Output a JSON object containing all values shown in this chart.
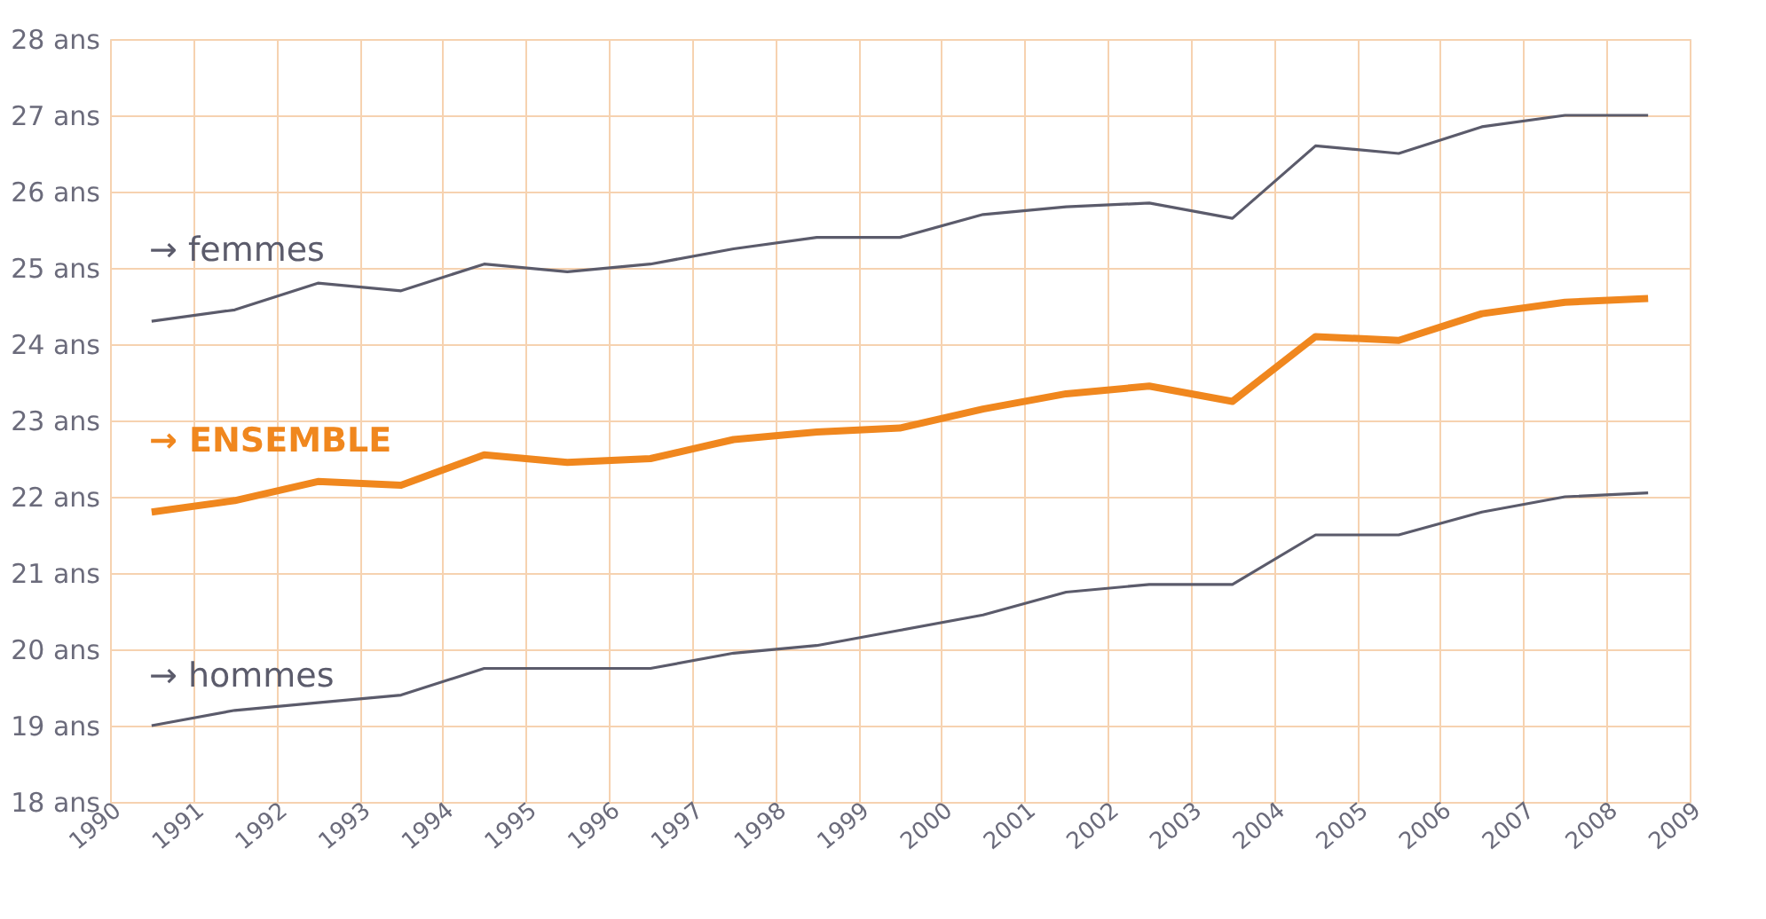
{
  "chart_data": {
    "type": "line",
    "x": [
      1990.5,
      1991.5,
      1992.5,
      1993.5,
      1994.5,
      1995.5,
      1996.5,
      1997.5,
      1998.5,
      1999.5,
      2000.5,
      2001.5,
      2002.5,
      2003.5,
      2004.5,
      2005.5,
      2006.5,
      2007.5,
      2008.5
    ],
    "series": [
      {
        "name": "→ femmes",
        "color": "#5b5b6b",
        "values": [
          24.3,
          24.45,
          24.8,
          24.7,
          25.05,
          24.95,
          25.05,
          25.25,
          25.4,
          25.4,
          25.7,
          25.8,
          25.85,
          25.65,
          26.6,
          26.5,
          26.85,
          27.0,
          27.0
        ]
      },
      {
        "name": "→ ENSEMBLE",
        "color": "#f0871e",
        "values": [
          21.8,
          21.95,
          22.2,
          22.15,
          22.55,
          22.45,
          22.5,
          22.75,
          22.85,
          22.9,
          23.15,
          23.35,
          23.45,
          23.25,
          24.1,
          24.05,
          24.4,
          24.55,
          24.6
        ]
      },
      {
        "name": "→ hommes",
        "color": "#5b5b6b",
        "values": [
          19.0,
          19.2,
          19.3,
          19.4,
          19.75,
          19.75,
          19.75,
          19.95,
          20.05,
          20.25,
          20.45,
          20.75,
          20.85,
          20.85,
          21.5,
          21.5,
          21.8,
          22.0,
          22.05
        ]
      }
    ],
    "xlim": [
      1990,
      2009
    ],
    "xticks": [
      1990,
      1991,
      1992,
      1993,
      1994,
      1995,
      1996,
      1997,
      1998,
      1999,
      2000,
      2001,
      2002,
      2003,
      2004,
      2005,
      2006,
      2007,
      2008,
      2009
    ],
    "ylim": [
      18,
      28
    ],
    "yticks": [
      {
        "value": 18,
        "label": "18 ans"
      },
      {
        "value": 19,
        "label": "19 ans"
      },
      {
        "value": 20,
        "label": "20 ans"
      },
      {
        "value": 21,
        "label": "21 ans"
      },
      {
        "value": 22,
        "label": "22 ans"
      },
      {
        "value": 23,
        "label": "23 ans"
      },
      {
        "value": 24,
        "label": "24 ans"
      },
      {
        "value": 25,
        "label": "25 ans"
      },
      {
        "value": 26,
        "label": "26 ans"
      },
      {
        "value": 27,
        "label": "27 ans"
      },
      {
        "value": 28,
        "label": "28 ans"
      }
    ],
    "grid": true,
    "marker": "none",
    "line_style": "solid"
  }
}
